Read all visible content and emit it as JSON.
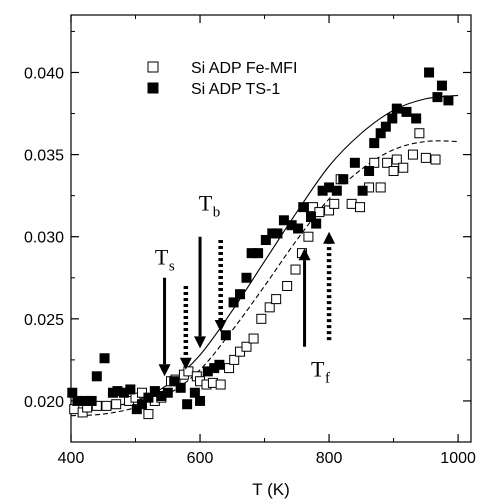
{
  "chart_data": {
    "type": "scatter",
    "title": "",
    "xlabel": "T (K)",
    "ylabel": "",
    "xlim": [
      400,
      1020
    ],
    "ylim": [
      0.0175,
      0.0435
    ],
    "x_ticks": [
      400,
      600,
      800,
      1000
    ],
    "x_tick_labels": [
      "400",
      "600",
      "800",
      "1000"
    ],
    "y_ticks": [
      0.02,
      0.025,
      0.03,
      0.035,
      0.04
    ],
    "y_tick_labels": [
      "0.020",
      "0.025",
      "0.030",
      "0.035",
      "0.040"
    ],
    "grid": false,
    "legend_position": "upper-left",
    "series": [
      {
        "name": "Si ADP Fe-MFI",
        "marker": "open-square",
        "color": "#000000",
        "points": [
          [
            405,
            0.0195
          ],
          [
            418,
            0.0193
          ],
          [
            425,
            0.0196
          ],
          [
            440,
            0.0197
          ],
          [
            455,
            0.0197
          ],
          [
            470,
            0.0198
          ],
          [
            490,
            0.02
          ],
          [
            500,
            0.0202
          ],
          [
            510,
            0.0205
          ],
          [
            520,
            0.0192
          ],
          [
            530,
            0.02
          ],
          [
            540,
            0.0202
          ],
          [
            555,
            0.0212
          ],
          [
            562,
            0.0213
          ],
          [
            575,
            0.0216
          ],
          [
            582,
            0.0218
          ],
          [
            595,
            0.0215
          ],
          [
            600,
            0.0212
          ],
          [
            610,
            0.021
          ],
          [
            620,
            0.0211
          ],
          [
            632,
            0.021
          ],
          [
            645,
            0.022
          ],
          [
            653,
            0.0225
          ],
          [
            662,
            0.023
          ],
          [
            672,
            0.0233
          ],
          [
            683,
            0.0238
          ],
          [
            695,
            0.025
          ],
          [
            708,
            0.0257
          ],
          [
            718,
            0.0262
          ],
          [
            735,
            0.027
          ],
          [
            748,
            0.028
          ],
          [
            758,
            0.029
          ],
          [
            768,
            0.03
          ],
          [
            775,
            0.0318
          ],
          [
            785,
            0.0315
          ],
          [
            800,
            0.0316
          ],
          [
            808,
            0.032
          ],
          [
            818,
            0.0335
          ],
          [
            835,
            0.032
          ],
          [
            848,
            0.0318
          ],
          [
            862,
            0.033
          ],
          [
            870,
            0.0345
          ],
          [
            880,
            0.033
          ],
          [
            890,
            0.0345
          ],
          [
            900,
            0.034
          ],
          [
            905,
            0.0347
          ],
          [
            915,
            0.0342
          ],
          [
            930,
            0.035
          ],
          [
            940,
            0.0363
          ],
          [
            950,
            0.0348
          ],
          [
            965,
            0.0347
          ]
        ]
      },
      {
        "name": "Si ADP TS-1",
        "marker": "filled-square",
        "color": "#000000",
        "points": [
          [
            402,
            0.0205
          ],
          [
            410,
            0.02
          ],
          [
            422,
            0.02
          ],
          [
            432,
            0.02
          ],
          [
            440,
            0.0215
          ],
          [
            452,
            0.0226
          ],
          [
            465,
            0.0205
          ],
          [
            472,
            0.0206
          ],
          [
            482,
            0.0205
          ],
          [
            492,
            0.0207
          ],
          [
            502,
            0.0195
          ],
          [
            510,
            0.0198
          ],
          [
            520,
            0.0202
          ],
          [
            530,
            0.0206
          ],
          [
            540,
            0.0203
          ],
          [
            550,
            0.0205
          ],
          [
            560,
            0.0212
          ],
          [
            570,
            0.0208
          ],
          [
            580,
            0.0198
          ],
          [
            592,
            0.0205
          ],
          [
            600,
            0.02
          ],
          [
            612,
            0.0218
          ],
          [
            622,
            0.022
          ],
          [
            630,
            0.0222
          ],
          [
            640,
            0.024
          ],
          [
            652,
            0.026
          ],
          [
            662,
            0.0265
          ],
          [
            672,
            0.0275
          ],
          [
            680,
            0.029
          ],
          [
            690,
            0.029
          ],
          [
            702,
            0.0298
          ],
          [
            712,
            0.0302
          ],
          [
            720,
            0.0302
          ],
          [
            730,
            0.031
          ],
          [
            742,
            0.0307
          ],
          [
            752,
            0.0305
          ],
          [
            760,
            0.0318
          ],
          [
            772,
            0.0312
          ],
          [
            780,
            0.0308
          ],
          [
            790,
            0.0328
          ],
          [
            800,
            0.033
          ],
          [
            812,
            0.0328
          ],
          [
            822,
            0.0335
          ],
          [
            840,
            0.0345
          ],
          [
            852,
            0.0328
          ],
          [
            862,
            0.034
          ],
          [
            870,
            0.0357
          ],
          [
            880,
            0.0363
          ],
          [
            888,
            0.0367
          ],
          [
            898,
            0.0372
          ],
          [
            905,
            0.0378
          ],
          [
            920,
            0.0376
          ],
          [
            935,
            0.0372
          ],
          [
            955,
            0.04
          ],
          [
            968,
            0.0385
          ],
          [
            975,
            0.0392
          ],
          [
            985,
            0.0383
          ]
        ]
      }
    ],
    "fits": [
      {
        "style": "solid",
        "points": [
          [
            400,
            0.0195
          ],
          [
            450,
            0.0196
          ],
          [
            500,
            0.02
          ],
          [
            550,
            0.021
          ],
          [
            600,
            0.0228
          ],
          [
            650,
            0.0255
          ],
          [
            700,
            0.0285
          ],
          [
            750,
            0.0315
          ],
          [
            800,
            0.0343
          ],
          [
            850,
            0.0363
          ],
          [
            900,
            0.0377
          ],
          [
            950,
            0.0384
          ],
          [
            1000,
            0.0386
          ]
        ]
      },
      {
        "style": "dashed",
        "points": [
          [
            400,
            0.0191
          ],
          [
            450,
            0.0192
          ],
          [
            500,
            0.0196
          ],
          [
            550,
            0.0204
          ],
          [
            600,
            0.0219
          ],
          [
            650,
            0.0243
          ],
          [
            700,
            0.027
          ],
          [
            750,
            0.0298
          ],
          [
            800,
            0.0323
          ],
          [
            850,
            0.0341
          ],
          [
            900,
            0.0353
          ],
          [
            950,
            0.0358
          ],
          [
            1000,
            0.0358
          ]
        ]
      }
    ],
    "annotations": [
      {
        "label": "T",
        "sub": "s",
        "arrows": [
          {
            "x": 545,
            "from_y": 0.0275,
            "to_y": 0.0215,
            "style": "solid",
            "direction": "down"
          },
          {
            "x": 578,
            "from_y": 0.027,
            "to_y": 0.0219,
            "style": "dotted",
            "direction": "down"
          }
        ],
        "text_x": 530,
        "text_y": 0.0283
      },
      {
        "label": "T",
        "sub": "b",
        "arrows": [
          {
            "x": 600,
            "from_y": 0.03,
            "to_y": 0.0232,
            "style": "solid",
            "direction": "down"
          },
          {
            "x": 632,
            "from_y": 0.0298,
            "to_y": 0.0242,
            "style": "dotted",
            "direction": "down"
          }
        ],
        "text_x": 598,
        "text_y": 0.0316
      },
      {
        "label": "T",
        "sub": "f",
        "arrows": [
          {
            "x": 762,
            "from_y": 0.0233,
            "to_y": 0.0293,
            "style": "solid",
            "direction": "up"
          },
          {
            "x": 800,
            "from_y": 0.0237,
            "to_y": 0.0303,
            "style": "dotted",
            "direction": "up"
          }
        ],
        "text_x": 772,
        "text_y": 0.0215
      }
    ]
  }
}
